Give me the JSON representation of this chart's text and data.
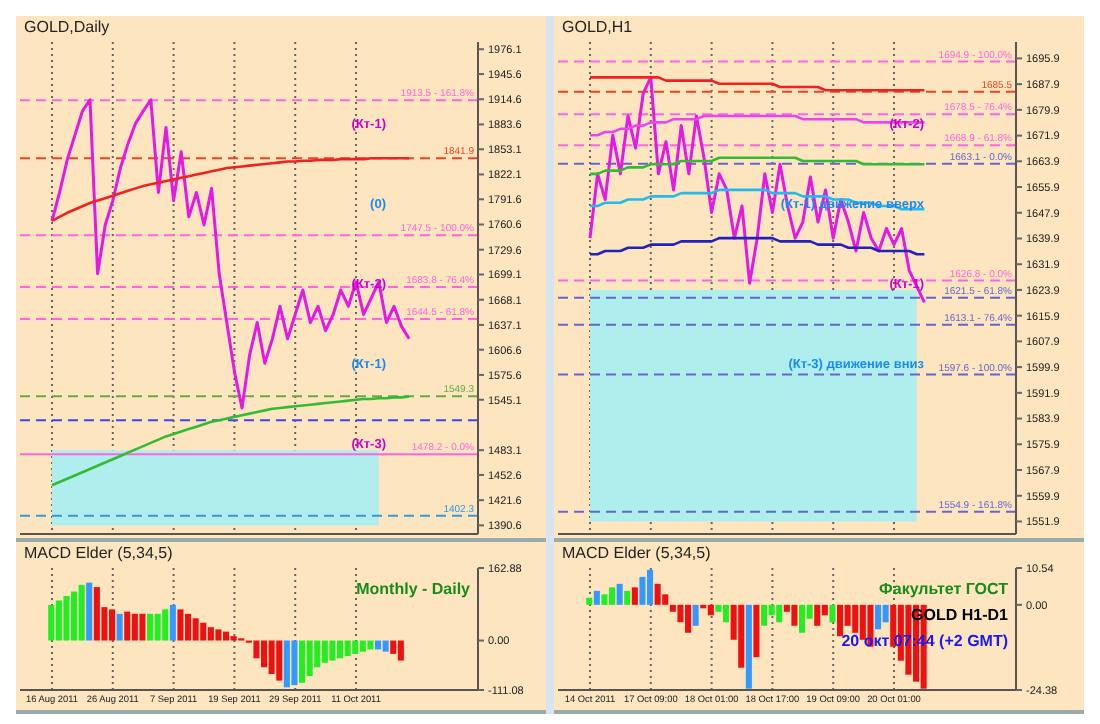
{
  "chart_data": [
    {
      "type": "line",
      "title": "GOLD,Daily",
      "tick_labels": "y",
      "grid": "x",
      "line_style": "solid",
      "marker": "none",
      "legend": false,
      "categories": [
        null,
        null,
        null,
        null,
        null,
        null,
        null,
        null,
        null,
        null,
        null,
        null,
        null,
        null,
        null,
        null,
        null,
        null,
        null,
        null,
        null,
        null,
        null,
        null,
        null,
        null,
        null,
        null,
        null,
        null,
        null,
        null,
        null,
        null,
        null,
        null,
        null,
        null,
        null,
        null,
        null,
        null,
        null,
        null,
        null,
        null,
        null,
        null,
        null,
        null,
        null,
        null,
        null,
        null,
        null,
        null
      ],
      "ylim": [
        1380,
        1985
      ],
      "yticks": [
        1390.6,
        1421.6,
        1452.6,
        1483.1,
        1545.1,
        1575.6,
        1606.6,
        1637.1,
        1668.1,
        1699.1,
        1729.6,
        1760.6,
        1791.6,
        1822.1,
        1853.1,
        1883.6,
        1914.6,
        1945.6,
        1976.1
      ],
      "series": [
        {
          "color": "#e21ae2",
          "values": [
            1765,
            1800,
            1840,
            1870,
            1900,
            1914,
            1700,
            1760,
            1790,
            1830,
            1860,
            1885,
            1900,
            1914,
            1800,
            1880,
            1790,
            1850,
            1770,
            1800,
            1760,
            1805,
            1700,
            1640,
            1580,
            1535,
            1600,
            1640,
            1590,
            1620,
            1660,
            1620,
            1650,
            1680,
            1640,
            1660,
            1630,
            1650,
            1680,
            1660,
            1690,
            1650,
            1670,
            1690,
            1640,
            1660,
            1635,
            1620,
            null,
            null,
            null,
            null,
            null,
            null,
            null,
            null
          ]
        },
        {
          "color": "#ee2222",
          "values": [
            1765,
            1770,
            1775,
            1779,
            1783,
            1787,
            1790,
            1793,
            1796,
            1799,
            1802,
            1805,
            1808,
            1810,
            1812,
            1814,
            1816,
            1818,
            1820,
            1822,
            1824,
            1826,
            1828,
            1830,
            1831,
            1832,
            1833,
            1834,
            1835,
            1836,
            1837,
            1838,
            1838,
            1839,
            1839,
            1840,
            1840,
            1840,
            1841,
            1841,
            1841,
            1841,
            1842,
            1842,
            1842,
            1842,
            1842,
            1842,
            null,
            null,
            null,
            null,
            null,
            null,
            null,
            null
          ]
        },
        {
          "color": "#33bb33",
          "values": [
            1440,
            1444,
            1448,
            1452,
            1456,
            1460,
            1464,
            1468,
            1472,
            1476,
            1480,
            1484,
            1488,
            1492,
            1496,
            1500,
            1503,
            1506,
            1509,
            1512,
            1515,
            1518,
            1520,
            1522,
            1524,
            1526,
            1528,
            1530,
            1532,
            1534,
            1535,
            1536,
            1537,
            1538,
            1539,
            1540,
            1541,
            1542,
            1543,
            1544,
            1545,
            1546,
            1546,
            1547,
            1547,
            1548,
            1548,
            1549,
            null,
            null,
            null,
            null,
            null,
            null,
            null,
            null
          ]
        }
      ],
      "ref_lines": [
        {
          "axis": "y",
          "value": 1913.5,
          "label": "1913.5 - 161.8%",
          "color": "#ff66dd",
          "line_style": "dashed"
        },
        {
          "axis": "y",
          "value": 1841.9,
          "label": "1841.9",
          "color": "#ee4422",
          "line_style": "dashed"
        },
        {
          "axis": "y",
          "value": 1747.5,
          "label": "1747.5 - 100.0%",
          "color": "#ff66dd",
          "line_style": "dashed"
        },
        {
          "axis": "y",
          "value": 1683.8,
          "label": "1683.8 - 76.4%",
          "color": "#ff66dd",
          "line_style": "dashed"
        },
        {
          "axis": "y",
          "value": 1644.5,
          "label": "1644.5 - 61.8%",
          "color": "#ff66dd",
          "line_style": "dashed"
        },
        {
          "axis": "y",
          "value": 1549.3,
          "label": "1549.3",
          "color": "#66aa44",
          "line_style": "dashed"
        },
        {
          "axis": "y",
          "value": 1519.9,
          "label": null,
          "color": "#4444ee",
          "line_style": "dashed"
        },
        {
          "axis": "y",
          "value": 1478.2,
          "label": "1478.2 - 0.0%",
          "color": "#ff66dd",
          "line_style": "solid"
        },
        {
          "axis": "y",
          "value": 1402.3,
          "label": "1402.3",
          "color": "#3399dd",
          "line_style": "dashed"
        }
      ],
      "bands": [
        {
          "axis": "y",
          "from": 1390.6,
          "to": 1483.1,
          "color": "#b0eeee"
        }
      ],
      "annotations": [
        "(Кт-1)",
        "(0)",
        "(Кт-2)",
        "(Кт-1)",
        "(Кт-3)"
      ]
    },
    {
      "type": "bar",
      "title": "MACD Elder (5,34,5)",
      "grid": "x",
      "legend": false,
      "categories": [
        "16 Aug 2011",
        null,
        null,
        null,
        null,
        null,
        null,
        null,
        "26 Aug 2011",
        null,
        null,
        null,
        null,
        null,
        null,
        null,
        "7 Sep 2011",
        null,
        null,
        null,
        null,
        null,
        null,
        null,
        "19 Sep 2011",
        null,
        null,
        null,
        null,
        null,
        null,
        null,
        "29 Sep 2011",
        null,
        null,
        null,
        null,
        null,
        null,
        null,
        "11 Oct 2011",
        null,
        null,
        null,
        null,
        null,
        null,
        null,
        null,
        null,
        null,
        null,
        null,
        null,
        null,
        null
      ],
      "ylim": [
        -111.08,
        162.88
      ],
      "yticks": [
        -111.08,
        {
          "value": 0,
          "label": "0.00"
        },
        162.88
      ],
      "values": [
        80,
        90,
        100,
        110,
        125,
        130,
        120,
        75,
        70,
        60,
        65,
        60,
        60,
        60,
        60,
        70,
        80,
        70,
        60,
        50,
        40,
        30,
        25,
        20,
        10,
        5,
        -5,
        -40,
        -60,
        -75,
        -90,
        -105,
        -100,
        -95,
        -80,
        -60,
        -50,
        -45,
        -40,
        -35,
        -30,
        -25,
        -20,
        -20,
        -25,
        -30,
        -45,
        null,
        null,
        null,
        null,
        null,
        null,
        null,
        null,
        null
      ],
      "colors": [
        "#22ee22",
        "#22ee22",
        "#22ee22",
        "#22ee22",
        "#22ee22",
        "#3399ff",
        "#ee1111",
        "#ee1111",
        "#ee1111",
        "#3399ff",
        "#ee1111",
        "#ee1111",
        "#ee1111",
        "#22ee22",
        "#22ee22",
        "#22ee22",
        "#3399ff",
        "#ee1111",
        "#ee1111",
        "#ee1111",
        "#ee1111",
        "#ee1111",
        "#ee1111",
        "#ee1111",
        "#ee1111",
        "#ee1111",
        "#ee1111",
        "#ee1111",
        "#ee1111",
        "#ee1111",
        "#ee1111",
        "#3399ff",
        "#3399ff",
        "#22ee22",
        "#22ee22",
        "#22ee22",
        "#22ee22",
        "#22ee22",
        "#22ee22",
        "#22ee22",
        "#22ee22",
        "#22ee22",
        "#22ee22",
        "#3399ff",
        "#3399ff",
        "#ee1111",
        "#ee1111",
        null,
        null,
        null,
        null,
        null,
        null,
        null,
        null,
        null
      ],
      "annotations": [
        "Monthly - Daily"
      ]
    },
    {
      "type": "line",
      "title": "GOLD,H1",
      "tick_labels": "y",
      "grid": "x",
      "line_style": "solid",
      "marker": "none",
      "legend": false,
      "categories": [
        null,
        null,
        null,
        null,
        null,
        null,
        null,
        null,
        null,
        null,
        null,
        null,
        null,
        null,
        null,
        null,
        null,
        null,
        null,
        null,
        null,
        null,
        null,
        null,
        null,
        null,
        null,
        null,
        null,
        null,
        null,
        null,
        null,
        null,
        null,
        null,
        null,
        null,
        null,
        null,
        null,
        null,
        null,
        null,
        null,
        null,
        null,
        null,
        null,
        null,
        null,
        null,
        null,
        null,
        null,
        null
      ],
      "ylim": [
        1548,
        1701
      ],
      "yticks": [
        1551.9,
        1559.9,
        1567.9,
        1575.9,
        1583.9,
        1591.9,
        1599.9,
        1607.9,
        1615.9,
        1623.9,
        1631.9,
        1639.9,
        1647.9,
        1655.9,
        1663.9,
        1671.9,
        1679.9,
        1687.9,
        1695.9
      ],
      "series": [
        {
          "color": "#e21ae2",
          "values": [
            1640,
            1660,
            1652,
            1672,
            1660,
            1678,
            1668,
            1685,
            1690,
            1660,
            1670,
            1655,
            1675,
            1660,
            1678,
            1665,
            1648,
            1660,
            1655,
            1640,
            1650,
            1626,
            1640,
            1660,
            1648,
            1663,
            1650,
            1640,
            1645,
            1659,
            1645,
            1655,
            1640,
            1652,
            1645,
            1636,
            1648,
            1640,
            1636,
            1643,
            1638,
            1643,
            1630,
            1625,
            1620,
            null,
            null,
            null,
            null,
            null,
            null,
            null,
            null,
            null,
            null,
            null
          ]
        },
        {
          "color": "#ee2222",
          "values": [
            1690,
            1690,
            1690,
            1690,
            1690,
            1690,
            1690,
            1690,
            1690,
            1690,
            1689,
            1689,
            1689,
            1689,
            1689,
            1689,
            1689,
            1688,
            1688,
            1688,
            1688,
            1688,
            1688,
            1688,
            1688,
            1687,
            1687,
            1687,
            1687,
            1687,
            1687,
            1686,
            1686,
            1686,
            1686,
            1686,
            1686,
            1686,
            1686,
            1686,
            1686,
            1686,
            1686,
            1686,
            1686,
            null,
            null,
            null,
            null,
            null,
            null,
            null,
            null,
            null,
            null,
            null
          ]
        },
        {
          "color": "#ee44ee",
          "values": [
            1672,
            1672,
            1673,
            1673,
            1674,
            1674,
            1675,
            1675,
            1676,
            1676,
            1676,
            1677,
            1677,
            1677,
            1677,
            1678,
            1678,
            1678,
            1678,
            1678,
            1678,
            1678,
            1678,
            1678,
            1678,
            1678,
            1678,
            1678,
            1677,
            1677,
            1677,
            1677,
            1677,
            1677,
            1677,
            1677,
            1676,
            1676,
            1676,
            1676,
            1676,
            1676,
            1676,
            1676,
            1676,
            null,
            null,
            null,
            null,
            null,
            null,
            null,
            null,
            null,
            null,
            null
          ]
        },
        {
          "color": "#33bb33",
          "values": [
            1660,
            1660,
            1661,
            1661,
            1661,
            1662,
            1662,
            1662,
            1663,
            1663,
            1663,
            1663,
            1664,
            1664,
            1664,
            1664,
            1664,
            1665,
            1665,
            1665,
            1665,
            1665,
            1665,
            1665,
            1665,
            1665,
            1665,
            1665,
            1664,
            1664,
            1664,
            1664,
            1664,
            1664,
            1664,
            1664,
            1663,
            1663,
            1663,
            1663,
            1663,
            1663,
            1663,
            1663,
            1663,
            null,
            null,
            null,
            null,
            null,
            null,
            null,
            null,
            null,
            null,
            null
          ]
        },
        {
          "color": "#22bbee",
          "values": [
            1650,
            1650,
            1651,
            1651,
            1651,
            1652,
            1652,
            1652,
            1653,
            1653,
            1653,
            1653,
            1654,
            1654,
            1654,
            1654,
            1654,
            1655,
            1655,
            1655,
            1655,
            1655,
            1655,
            1655,
            1654,
            1654,
            1654,
            1654,
            1653,
            1653,
            1653,
            1653,
            1652,
            1652,
            1652,
            1651,
            1651,
            1651,
            1650,
            1650,
            1650,
            1649,
            1649,
            1649,
            1649,
            null,
            null,
            null,
            null,
            null,
            null,
            null,
            null,
            null,
            null,
            null
          ]
        },
        {
          "color": "#2222bb",
          "values": [
            1635,
            1635,
            1636,
            1636,
            1636,
            1637,
            1637,
            1637,
            1638,
            1638,
            1638,
            1638,
            1639,
            1639,
            1639,
            1639,
            1639,
            1640,
            1640,
            1640,
            1640,
            1640,
            1640,
            1640,
            1640,
            1639,
            1639,
            1639,
            1639,
            1639,
            1638,
            1638,
            1638,
            1638,
            1637,
            1637,
            1637,
            1637,
            1636,
            1636,
            1636,
            1636,
            1636,
            1635,
            1635,
            null,
            null,
            null,
            null,
            null,
            null,
            null,
            null,
            null,
            null,
            null
          ]
        }
      ],
      "ref_lines": [
        {
          "axis": "y",
          "value": 1694.9,
          "label": "1694.9 - 100.0%",
          "color": "#ff66dd",
          "line_style": "dashed"
        },
        {
          "axis": "y",
          "value": 1685.5,
          "label": "1685.5",
          "color": "#ee4422",
          "line_style": "dashed"
        },
        {
          "axis": "y",
          "value": 1678.5,
          "label": "1678.5 - 76.4%",
          "color": "#ff66dd",
          "line_style": "dashed"
        },
        {
          "axis": "y",
          "value": 1668.9,
          "label": "1668.9 - 61.8%",
          "color": "#ff66dd",
          "line_style": "dashed"
        },
        {
          "axis": "y",
          "value": 1663.1,
          "label": "1663.1 - 0.0%",
          "color": "#6666cc",
          "line_style": "dashed"
        },
        {
          "axis": "y",
          "value": 1626.8,
          "label": "1626.8 - 0.0%",
          "color": "#ff66dd",
          "line_style": "dashed"
        },
        {
          "axis": "y",
          "value": 1621.5,
          "label": "1621.5 - 61.8%",
          "color": "#6666cc",
          "line_style": "dashed"
        },
        {
          "axis": "y",
          "value": 1613.1,
          "label": "1613.1 - 76.4%",
          "color": "#6666cc",
          "line_style": "dashed"
        },
        {
          "axis": "y",
          "value": 1597.6,
          "label": "1597.6 - 100.0%",
          "color": "#6666cc",
          "line_style": "dashed"
        },
        {
          "axis": "y",
          "value": 1554.9,
          "label": "1554.9 - 161.8%",
          "color": "#6666cc",
          "line_style": "dashed"
        }
      ],
      "bands": [
        {
          "axis": "y",
          "from": 1551.9,
          "to": 1623.9,
          "color": "#b0eeee"
        }
      ],
      "annotations": [
        "(Кт-2)",
        "(Кт-1) движение вверх",
        "(Кт-1)",
        "(Кт-3) движение вниз"
      ]
    },
    {
      "type": "bar",
      "title": "MACD Elder (5,34,5)",
      "grid": "x",
      "legend": false,
      "categories": [
        "14 Oct 2011",
        null,
        null,
        null,
        null,
        null,
        null,
        null,
        "17 Oct 09:00",
        null,
        null,
        null,
        null,
        null,
        null,
        null,
        "18 Oct 01:00",
        null,
        null,
        null,
        null,
        null,
        null,
        null,
        "18 Oct 17:00",
        null,
        null,
        null,
        null,
        null,
        null,
        null,
        "19 Oct 09:00",
        null,
        null,
        null,
        null,
        null,
        null,
        null,
        "20 Oct 01:00",
        null,
        null,
        null,
        null,
        null,
        null,
        null,
        null,
        null,
        null,
        null,
        null,
        null,
        null,
        null
      ],
      "ylim": [
        -24.38,
        10.54
      ],
      "yticks": [
        -24.38,
        {
          "value": 0,
          "label": "0.00"
        },
        10.54
      ],
      "values": [
        2,
        4,
        3,
        5,
        6,
        4,
        5,
        8,
        10,
        6,
        3,
        -2,
        -5,
        -8,
        -6,
        -1,
        -3,
        -2,
        -5,
        -10,
        -18,
        -24,
        -15,
        -6,
        -3,
        -5,
        -2,
        -6,
        -8,
        -4,
        -6,
        -3,
        -5,
        -9,
        -6,
        -8,
        -10,
        -12,
        -7,
        -5,
        -12,
        -16,
        -20,
        -22,
        -24,
        null,
        null,
        null,
        null,
        null,
        null,
        null,
        null,
        null,
        null,
        null
      ],
      "colors": [
        "#22ee22",
        "#3399ff",
        "#22ee22",
        "#22ee22",
        "#3399ff",
        "#22ee22",
        "#ee1111",
        "#3399ff",
        "#3399ff",
        "#ee1111",
        "#ee1111",
        "#ee1111",
        "#ee1111",
        "#ee1111",
        "#3399ff",
        "#ee1111",
        "#ee1111",
        "#22ee22",
        "#22ee22",
        "#ee1111",
        "#ee1111",
        "#3399ff",
        "#ee1111",
        "#22ee22",
        "#22ee22",
        "#22ee22",
        "#ee1111",
        "#ee1111",
        "#22ee22",
        "#22ee22",
        "#ee1111",
        "#ee1111",
        "#22ee22",
        "#ee1111",
        "#ee1111",
        "#ee1111",
        "#ee1111",
        "#ee1111",
        "#3399ff",
        "#3399ff",
        "#ee1111",
        "#ee1111",
        "#ee1111",
        "#ee1111",
        "#ee1111",
        null,
        null,
        null,
        null,
        null,
        null,
        null,
        null,
        null,
        null,
        null
      ],
      "annotations": [
        "Факультет ГОСТ",
        "GOLD   H1-D1",
        "20 окт 07:44 (+2 GMT)"
      ]
    }
  ]
}
